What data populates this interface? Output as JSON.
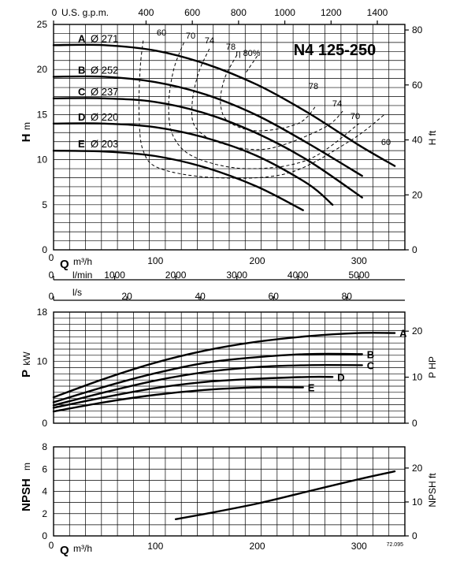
{
  "chart_data": [
    {
      "type": "line",
      "title": "N4 125-250",
      "ylabel": "H",
      "ylabel_unit": "m",
      "ylabel_right": "H",
      "ylabel_right_unit": "ft",
      "top_axis_label": "U.S. g.p.m.",
      "top_ticks": [
        "0",
        "400",
        "600",
        "800",
        "1000",
        "1200",
        "1400"
      ],
      "top_tick_values": [
        0,
        400,
        600,
        800,
        1000,
        1200,
        1400
      ],
      "ylim": [
        0,
        25
      ],
      "y_ticks": [
        "0",
        "5",
        "10",
        "15",
        "20",
        "25"
      ],
      "right_ticks": [
        "0",
        "20",
        "40",
        "60",
        "80"
      ],
      "right_tick_values": [
        0,
        20,
        40,
        60,
        80
      ],
      "xlim": [
        0,
        345
      ],
      "series": [
        {
          "name": "A",
          "diameter": "Ø 271",
          "x": [
            0,
            50,
            100,
            150,
            200,
            250,
            300,
            335
          ],
          "y": [
            22.7,
            22.7,
            22.1,
            20.6,
            18.3,
            15.2,
            11.6,
            9.3
          ]
        },
        {
          "name": "B",
          "diameter": "Ø 252",
          "x": [
            0,
            50,
            100,
            150,
            200,
            250,
            303
          ],
          "y": [
            19.2,
            19.2,
            18.6,
            17.2,
            14.9,
            11.8,
            8.2
          ]
        },
        {
          "name": "C",
          "diameter": "Ø 237",
          "x": [
            0,
            50,
            100,
            150,
            200,
            250,
            303
          ],
          "y": [
            16.8,
            16.8,
            16.4,
            15.1,
            12.9,
            9.9,
            5.8
          ]
        },
        {
          "name": "D",
          "diameter": "Ø 220",
          "x": [
            0,
            50,
            100,
            150,
            200,
            250,
            274
          ],
          "y": [
            14.0,
            14.0,
            13.6,
            12.4,
            10.4,
            7.3,
            5.0
          ]
        },
        {
          "name": "E",
          "diameter": "Ø 203",
          "x": [
            0,
            50,
            100,
            150,
            200,
            245
          ],
          "y": [
            11.0,
            10.9,
            10.4,
            9.1,
            7.0,
            4.4
          ]
        }
      ],
      "efficiency_labels": [
        "60",
        "70",
        "74",
        "78",
        "η 80%",
        "78",
        "74",
        "70",
        "60"
      ],
      "efficiency_curves": [
        {
          "label": "60",
          "x": [
            88,
            85,
            84,
            88,
            105,
            160,
            230,
            290,
            325
          ],
          "y": [
            23.2,
            20,
            15,
            11,
            9,
            8,
            8.5,
            12,
            15
          ]
        },
        {
          "label": "70",
          "x": [
            128,
            118,
            113,
            118,
            140,
            190,
            250,
            300
          ],
          "y": [
            23,
            20,
            16,
            12.5,
            10.2,
            9,
            10,
            14
          ]
        },
        {
          "label": "74",
          "x": [
            153,
            142,
            136,
            140,
            165,
            210,
            265,
            285
          ],
          "y": [
            22.3,
            19.5,
            16,
            13.5,
            11.8,
            11.2,
            13.5,
            15.5
          ]
        },
        {
          "label": "78",
          "x": [
            180,
            168,
            164,
            172,
            200,
            240,
            258
          ],
          "y": [
            21.6,
            19,
            16.2,
            14.2,
            13.2,
            14,
            16
          ]
        },
        {
          "label": "η 80%",
          "x": [
            200,
            188
          ],
          "y": [
            21.5,
            19.5
          ]
        }
      ],
      "flow_axes": {
        "m3h": {
          "label": "Q",
          "unit": "m³/h",
          "ticks": [
            "0",
            "100",
            "200",
            "300"
          ],
          "values": [
            0,
            100,
            200,
            300
          ]
        },
        "lmin": {
          "unit": "l/min",
          "ticks": [
            "0",
            "1000",
            "2000",
            "3000",
            "4000",
            "5000"
          ],
          "values": [
            0,
            1000,
            2000,
            3000,
            4000,
            5000
          ]
        },
        "ls": {
          "unit": "l/s",
          "ticks": [
            "0",
            "20",
            "40",
            "60",
            "80"
          ],
          "values": [
            0,
            20,
            40,
            60,
            80
          ]
        }
      }
    },
    {
      "type": "line",
      "ylabel": "P",
      "ylabel_unit": "kW",
      "ylabel_right": "P",
      "ylabel_right_unit": "HP",
      "ylim": [
        0,
        18
      ],
      "y_ticks": [
        "0",
        "10",
        "18"
      ],
      "y_tick_values": [
        0,
        10,
        18
      ],
      "right_ticks": [
        "0",
        "10",
        "20"
      ],
      "right_tick_values": [
        0,
        10,
        20
      ],
      "xlim": [
        0,
        345
      ],
      "series": [
        {
          "name": "A",
          "x": [
            0,
            50,
            100,
            150,
            200,
            250,
            300,
            335
          ],
          "y": [
            4.2,
            7.2,
            9.8,
            11.8,
            13.2,
            14.1,
            14.6,
            14.6
          ]
        },
        {
          "name": "B",
          "x": [
            0,
            50,
            100,
            150,
            200,
            250,
            303
          ],
          "y": [
            3.4,
            5.9,
            8.1,
            9.8,
            10.7,
            11.2,
            11.2
          ]
        },
        {
          "name": "C",
          "x": [
            0,
            50,
            100,
            150,
            200,
            250,
            303
          ],
          "y": [
            2.9,
            5.0,
            6.9,
            8.3,
            9.1,
            9.4,
            9.4
          ]
        },
        {
          "name": "D",
          "x": [
            0,
            50,
            100,
            150,
            200,
            250,
            274
          ],
          "y": [
            2.5,
            4.2,
            5.7,
            6.7,
            7.2,
            7.5,
            7.5
          ]
        },
        {
          "name": "E",
          "x": [
            0,
            50,
            100,
            150,
            200,
            245
          ],
          "y": [
            1.9,
            3.4,
            4.6,
            5.4,
            5.8,
            5.8
          ]
        }
      ]
    },
    {
      "type": "line",
      "ylabel": "NPSH",
      "ylabel_unit": "m",
      "ylabel_right": "NPSH",
      "ylabel_right_unit": "ft",
      "xlabel": "Q",
      "xlabel_unit": "m³/h",
      "ylim": [
        0,
        8
      ],
      "y_ticks": [
        "0",
        "2",
        "4",
        "6",
        "8"
      ],
      "right_ticks": [
        "0",
        "10",
        "20"
      ],
      "right_tick_values": [
        0,
        10,
        20
      ],
      "x_ticks": [
        "0",
        "100",
        "200",
        "300"
      ],
      "x_tick_values": [
        0,
        100,
        200,
        300
      ],
      "xlim": [
        0,
        345
      ],
      "series": [
        {
          "name": "NPSH",
          "x": [
            120,
            150,
            200,
            250,
            300,
            335
          ],
          "y": [
            1.5,
            2.0,
            2.9,
            4.0,
            5.1,
            5.8
          ]
        }
      ],
      "footnote": "72.095"
    }
  ]
}
